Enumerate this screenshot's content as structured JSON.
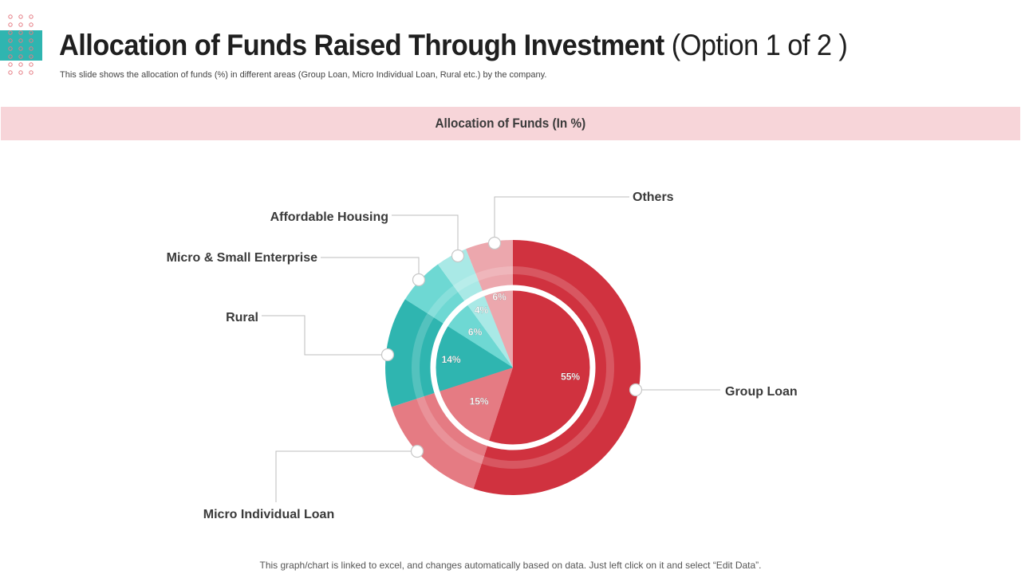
{
  "slide": {
    "title_bold": "Allocation of Funds Raised Through Investment",
    "title_light": "(Option 1 of 2 )",
    "subtitle": "This slide shows the allocation of funds (%) in different areas (Group Loan, Micro Individual Loan, Rural etc.) by the company.",
    "section_label": "Allocation of Funds (In %)",
    "footer": "This graph/chart is linked to excel, and changes automatically based on data. Just left click on it and select “Edit Data”."
  },
  "chart_data": {
    "type": "pie",
    "title": "Allocation of Funds (In %)",
    "categories": [
      "Group Loan",
      "Micro Individual Loan",
      "Rural",
      "Micro & Small Enterprise",
      "Affordable Housing",
      "Others"
    ],
    "values": [
      55,
      15,
      14,
      6,
      4,
      6
    ],
    "labels": [
      "55%",
      "15%",
      "14%",
      "6%",
      "4%",
      "6%"
    ],
    "colors": [
      "#d0323f",
      "#e57b83",
      "#2fb5b0",
      "#6ed8d3",
      "#a9e9e6",
      "#eca7ad"
    ],
    "outer_colors": [
      "#d0323f",
      "#e57b83",
      "#2fb5b0",
      "#6ed8d3",
      "#a9e9e6",
      "#eca7ad"
    ],
    "unit": "%"
  },
  "colors": {
    "accent_red": "#d0323f",
    "accent_teal": "#2fb5b0",
    "band": "#f7d5d9"
  }
}
